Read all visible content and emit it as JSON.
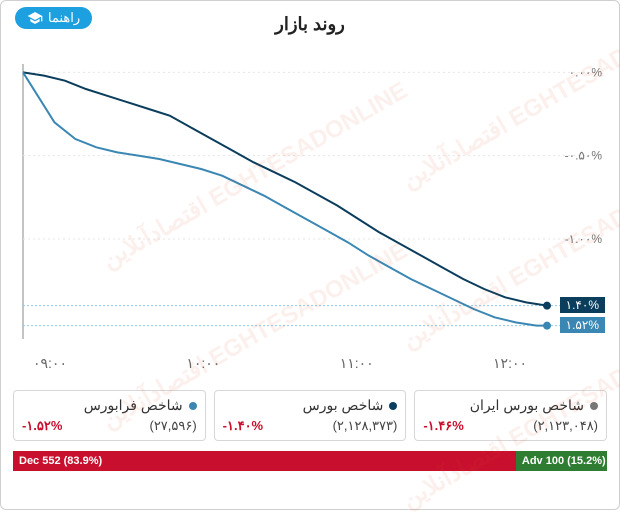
{
  "header": {
    "title": "روند بازار",
    "guide_label": "راهنما"
  },
  "chart": {
    "type": "line",
    "background_color": "#ffffff",
    "grid_color": "#e6e6e6",
    "dotted_color": "#8ecae6",
    "ylim": [
      -1.6,
      0.05
    ],
    "yticks": [
      {
        "v": 0.0,
        "label": "۰.۰۰%"
      },
      {
        "v": -0.5,
        "label": "-۰.۵۰%"
      },
      {
        "v": -1.0,
        "label": "-۱.۰۰%"
      }
    ],
    "xlabels": [
      "۰۹:۰۰",
      "۱۰:۰۰",
      "۱۱:۰۰",
      "۱۲:۰۰"
    ],
    "series": [
      {
        "id": "bourse",
        "color": "#0b3d5c",
        "line_width": 2,
        "end_label": "۱.۴۰%",
        "end_badge_bg": "#0b3d5c",
        "points": [
          [
            0.0,
            0.0
          ],
          [
            0.04,
            -0.02
          ],
          [
            0.08,
            -0.05
          ],
          [
            0.12,
            -0.1
          ],
          [
            0.16,
            -0.14
          ],
          [
            0.2,
            -0.18
          ],
          [
            0.24,
            -0.22
          ],
          [
            0.28,
            -0.26
          ],
          [
            0.32,
            -0.33
          ],
          [
            0.36,
            -0.4
          ],
          [
            0.4,
            -0.47
          ],
          [
            0.44,
            -0.54
          ],
          [
            0.48,
            -0.6
          ],
          [
            0.52,
            -0.66
          ],
          [
            0.56,
            -0.73
          ],
          [
            0.6,
            -0.8
          ],
          [
            0.64,
            -0.88
          ],
          [
            0.68,
            -0.96
          ],
          [
            0.72,
            -1.03
          ],
          [
            0.76,
            -1.1
          ],
          [
            0.8,
            -1.17
          ],
          [
            0.84,
            -1.24
          ],
          [
            0.88,
            -1.3
          ],
          [
            0.92,
            -1.35
          ],
          [
            0.96,
            -1.38
          ],
          [
            1.0,
            -1.4
          ]
        ]
      },
      {
        "id": "farabourse",
        "color": "#3b87b3",
        "line_width": 2,
        "end_label": "۱.۵۲%",
        "end_badge_bg": "#3b87b3",
        "points": [
          [
            0.0,
            0.0
          ],
          [
            0.03,
            -0.15
          ],
          [
            0.06,
            -0.3
          ],
          [
            0.1,
            -0.4
          ],
          [
            0.14,
            -0.45
          ],
          [
            0.18,
            -0.48
          ],
          [
            0.22,
            -0.5
          ],
          [
            0.26,
            -0.52
          ],
          [
            0.3,
            -0.55
          ],
          [
            0.34,
            -0.58
          ],
          [
            0.38,
            -0.62
          ],
          [
            0.42,
            -0.68
          ],
          [
            0.46,
            -0.74
          ],
          [
            0.5,
            -0.81
          ],
          [
            0.54,
            -0.88
          ],
          [
            0.58,
            -0.95
          ],
          [
            0.62,
            -1.02
          ],
          [
            0.66,
            -1.1
          ],
          [
            0.7,
            -1.17
          ],
          [
            0.74,
            -1.24
          ],
          [
            0.78,
            -1.3
          ],
          [
            0.82,
            -1.36
          ],
          [
            0.86,
            -1.42
          ],
          [
            0.9,
            -1.47
          ],
          [
            0.94,
            -1.5
          ],
          [
            0.98,
            -1.52
          ],
          [
            1.0,
            -1.52
          ]
        ]
      }
    ]
  },
  "legend": {
    "items": [
      {
        "title": "شاخص فرابورس",
        "dot_color": "#3b87b3",
        "pct": "-۱.۵۲%",
        "pct_color": "#c8102e",
        "value": "(۲۷,۵۹۶)"
      },
      {
        "title": "شاخص بورس",
        "dot_color": "#0b3d5c",
        "pct": "-۱.۴۰%",
        "pct_color": "#c8102e",
        "value": "(۲,۱۲۸,۳۷۳)"
      },
      {
        "title": "شاخص بورس ایران",
        "dot_color": "#777777",
        "pct": "-۱.۴۶%",
        "pct_color": "#c8102e",
        "value": "(۲,۱۲۳,۰۴۸)"
      }
    ]
  },
  "adv_dec": {
    "dec": {
      "label": "Dec 552 (83.9%)",
      "pct": 83.9,
      "color": "#c8102e"
    },
    "adv": {
      "label": "Adv 100 (15.2%)",
      "pct": 15.2,
      "color": "#2e7d32"
    }
  },
  "watermark": {
    "text": "اقتصادآنلاین EGHTESADONLINE",
    "color": "#e04a2a",
    "opacity": 0.08
  }
}
